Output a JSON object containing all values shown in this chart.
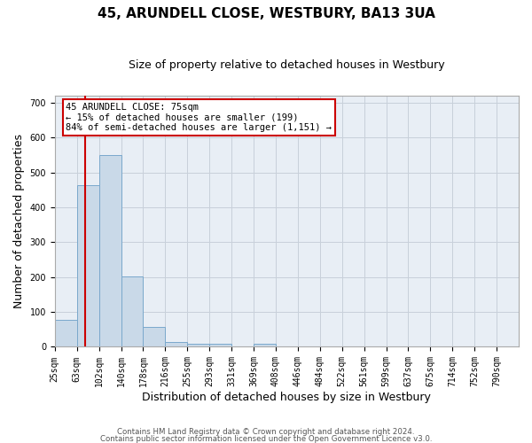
{
  "title1": "45, ARUNDELL CLOSE, WESTBURY, BA13 3UA",
  "title2": "Size of property relative to detached houses in Westbury",
  "xlabel": "Distribution of detached houses by size in Westbury",
  "ylabel": "Number of detached properties",
  "footer1": "Contains HM Land Registry data © Crown copyright and database right 2024.",
  "footer2": "Contains public sector information licensed under the Open Government Licence v3.0.",
  "annotation_title": "45 ARUNDELL CLOSE: 75sqm",
  "annotation_line1": "← 15% of detached houses are smaller (199)",
  "annotation_line2": "84% of semi-detached houses are larger (1,151) →",
  "bin_labels": [
    "25sqm",
    "63sqm",
    "102sqm",
    "140sqm",
    "178sqm",
    "216sqm",
    "255sqm",
    "293sqm",
    "331sqm",
    "369sqm",
    "408sqm",
    "446sqm",
    "484sqm",
    "522sqm",
    "561sqm",
    "599sqm",
    "637sqm",
    "675sqm",
    "714sqm",
    "752sqm",
    "790sqm"
  ],
  "bar_heights": [
    78,
    463,
    551,
    203,
    57,
    15,
    9,
    9,
    0,
    8,
    0,
    0,
    0,
    0,
    0,
    0,
    0,
    0,
    0,
    0
  ],
  "bar_color": "#c9d9e8",
  "bar_edgecolor": "#7aa8cc",
  "redline_x": 1.38,
  "ylim": [
    0,
    720
  ],
  "yticks": [
    0,
    100,
    200,
    300,
    400,
    500,
    600,
    700
  ],
  "grid_color": "#c8d0da",
  "bg_color": "#e8eef5",
  "annotation_box_facecolor": "#ffffff",
  "annotation_box_edgecolor": "#cc0000",
  "redline_color": "#cc0000",
  "title1_fontsize": 11,
  "title2_fontsize": 9,
  "tick_fontsize": 7,
  "ylabel_fontsize": 9,
  "xlabel_fontsize": 9
}
